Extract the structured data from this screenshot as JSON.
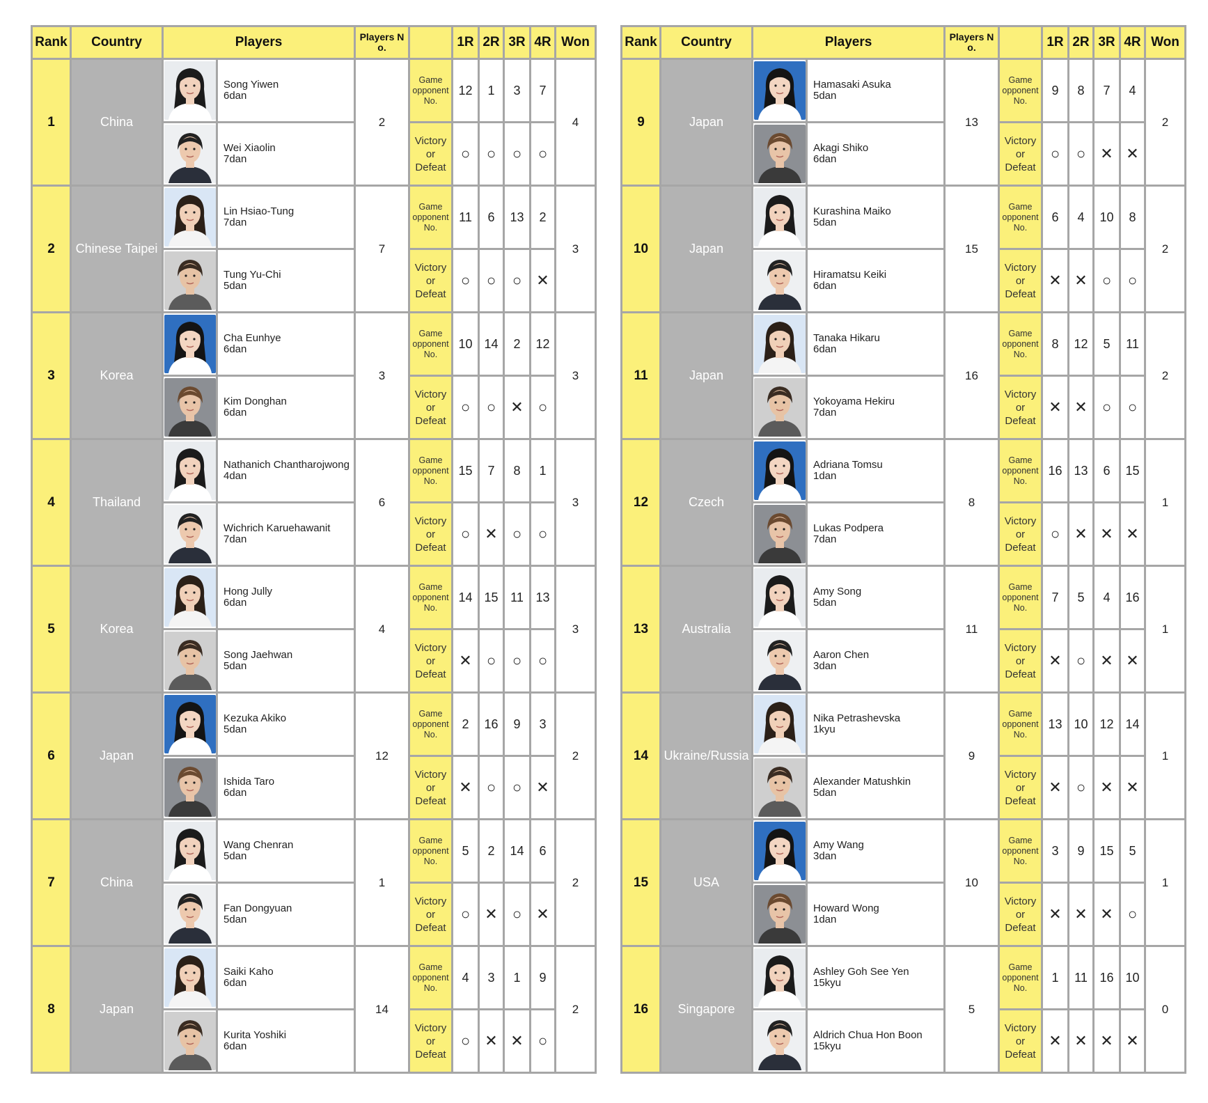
{
  "headers": {
    "rank": "Rank",
    "country": "Country",
    "players": "Players",
    "players_no": "Players N o.",
    "blank": "",
    "r1": "1R",
    "r2": "2R",
    "r3": "3R",
    "r4": "4R",
    "won": "Won"
  },
  "labels": {
    "game_opponent": [
      "Game",
      "opponent",
      "No."
    ],
    "victory_defeat": [
      "Victory",
      "or",
      "Defeat"
    ]
  },
  "teams": [
    {
      "rank": "1",
      "country": "China",
      "players": [
        {
          "name": "Song Yiwen",
          "grade": "6dan"
        },
        {
          "name": "Wei Xiaolin",
          "grade": "7dan"
        }
      ],
      "players_no": "2",
      "opponents": [
        "12",
        "1",
        "3",
        "7"
      ],
      "results": [
        "O",
        "O",
        "O",
        "O"
      ],
      "won": "4"
    },
    {
      "rank": "2",
      "country": "Chinese Taipei",
      "players": [
        {
          "name": "Lin Hsiao-Tung",
          "grade": "7dan"
        },
        {
          "name": "Tung Yu-Chi",
          "grade": "5dan"
        }
      ],
      "players_no": "7",
      "opponents": [
        "11",
        "6",
        "13",
        "2"
      ],
      "results": [
        "O",
        "O",
        "O",
        "X"
      ],
      "won": "3"
    },
    {
      "rank": "3",
      "country": "Korea",
      "players": [
        {
          "name": "Cha Eunhye",
          "grade": "6dan"
        },
        {
          "name": "Kim Donghan",
          "grade": "6dan"
        }
      ],
      "players_no": "3",
      "opponents": [
        "10",
        "14",
        "2",
        "12"
      ],
      "results": [
        "O",
        "O",
        "X",
        "O"
      ],
      "won": "3"
    },
    {
      "rank": "4",
      "country": "Thailand",
      "players": [
        {
          "name": "Nathanich Chantharojwong",
          "grade": "4dan"
        },
        {
          "name": "Wichrich Karuehawanit",
          "grade": "7dan"
        }
      ],
      "players_no": "6",
      "opponents": [
        "15",
        "7",
        "8",
        "1"
      ],
      "results": [
        "O",
        "X",
        "O",
        "O"
      ],
      "won": "3"
    },
    {
      "rank": "5",
      "country": "Korea",
      "players": [
        {
          "name": "Hong Jully",
          "grade": "6dan"
        },
        {
          "name": "Song Jaehwan",
          "grade": "5dan"
        }
      ],
      "players_no": "4",
      "opponents": [
        "14",
        "15",
        "11",
        "13"
      ],
      "results": [
        "X",
        "O",
        "O",
        "O"
      ],
      "won": "3"
    },
    {
      "rank": "6",
      "country": "Japan",
      "players": [
        {
          "name": "Kezuka Akiko",
          "grade": "5dan"
        },
        {
          "name": "Ishida Taro",
          "grade": "6dan"
        }
      ],
      "players_no": "12",
      "opponents": [
        "2",
        "16",
        "9",
        "3"
      ],
      "results": [
        "X",
        "O",
        "O",
        "X"
      ],
      "won": "2"
    },
    {
      "rank": "7",
      "country": "China",
      "players": [
        {
          "name": "Wang Chenran",
          "grade": "5dan"
        },
        {
          "name": "Fan Dongyuan",
          "grade": "5dan"
        }
      ],
      "players_no": "1",
      "opponents": [
        "5",
        "2",
        "14",
        "6"
      ],
      "results": [
        "O",
        "X",
        "O",
        "X"
      ],
      "won": "2"
    },
    {
      "rank": "8",
      "country": "Japan",
      "players": [
        {
          "name": "Saiki Kaho",
          "grade": "6dan"
        },
        {
          "name": "Kurita Yoshiki",
          "grade": "6dan"
        }
      ],
      "players_no": "14",
      "opponents": [
        "4",
        "3",
        "1",
        "9"
      ],
      "results": [
        "O",
        "X",
        "X",
        "O"
      ],
      "won": "2"
    },
    {
      "rank": "9",
      "country": "Japan",
      "players": [
        {
          "name": "Hamasaki Asuka",
          "grade": "5dan"
        },
        {
          "name": "Akagi Shiko",
          "grade": "6dan"
        }
      ],
      "players_no": "13",
      "opponents": [
        "9",
        "8",
        "7",
        "4"
      ],
      "results": [
        "O",
        "O",
        "X",
        "X"
      ],
      "won": "2"
    },
    {
      "rank": "10",
      "country": "Japan",
      "players": [
        {
          "name": "Kurashina Maiko",
          "grade": "5dan"
        },
        {
          "name": "Hiramatsu Keiki",
          "grade": "6dan"
        }
      ],
      "players_no": "15",
      "opponents": [
        "6",
        "4",
        "10",
        "8"
      ],
      "results": [
        "X",
        "X",
        "O",
        "O"
      ],
      "won": "2"
    },
    {
      "rank": "11",
      "country": "Japan",
      "players": [
        {
          "name": "Tanaka Hikaru",
          "grade": "6dan"
        },
        {
          "name": "Yokoyama Hekiru",
          "grade": "7dan"
        }
      ],
      "players_no": "16",
      "opponents": [
        "8",
        "12",
        "5",
        "11"
      ],
      "results": [
        "X",
        "X",
        "O",
        "O"
      ],
      "won": "2"
    },
    {
      "rank": "12",
      "country": "Czech",
      "players": [
        {
          "name": "Adriana Tomsu",
          "grade": "1dan"
        },
        {
          "name": "Lukas Podpera",
          "grade": "7dan"
        }
      ],
      "players_no": "8",
      "opponents": [
        "16",
        "13",
        "6",
        "15"
      ],
      "results": [
        "O",
        "X",
        "X",
        "X"
      ],
      "won": "1"
    },
    {
      "rank": "13",
      "country": "Australia",
      "players": [
        {
          "name": "Amy Song",
          "grade": "5dan"
        },
        {
          "name": "Aaron Chen",
          "grade": "3dan"
        }
      ],
      "players_no": "11",
      "opponents": [
        "7",
        "5",
        "4",
        "16"
      ],
      "results": [
        "X",
        "O",
        "X",
        "X"
      ],
      "won": "1"
    },
    {
      "rank": "14",
      "country": "Ukraine/Russia",
      "players": [
        {
          "name": "Nika Petrashevska",
          "grade": "1kyu"
        },
        {
          "name": "Alexander Matushkin",
          "grade": "5dan"
        }
      ],
      "players_no": "9",
      "opponents": [
        "13",
        "10",
        "12",
        "14"
      ],
      "results": [
        "X",
        "O",
        "X",
        "X"
      ],
      "won": "1"
    },
    {
      "rank": "15",
      "country": "USA",
      "players": [
        {
          "name": "Amy Wang",
          "grade": "3dan"
        },
        {
          "name": "Howard Wong",
          "grade": "1dan"
        }
      ],
      "players_no": "10",
      "opponents": [
        "3",
        "9",
        "15",
        "5"
      ],
      "results": [
        "X",
        "X",
        "X",
        "O"
      ],
      "won": "1"
    },
    {
      "rank": "16",
      "country": "Singapore",
      "players": [
        {
          "name": "Ashley Goh See Yen",
          "grade": "15kyu"
        },
        {
          "name": "Aldrich Chua Hon Boon",
          "grade": "15kyu"
        }
      ],
      "players_no": "5",
      "opponents": [
        "1",
        "11",
        "16",
        "10"
      ],
      "results": [
        "X",
        "X",
        "X",
        "X"
      ],
      "won": "0"
    }
  ],
  "result_symbols": {
    "O": "○",
    "X": "✕"
  },
  "colors": {
    "header_bg": "#fbf07a",
    "country_bg": "#b3b3b3",
    "border": "#a6a6a6"
  }
}
